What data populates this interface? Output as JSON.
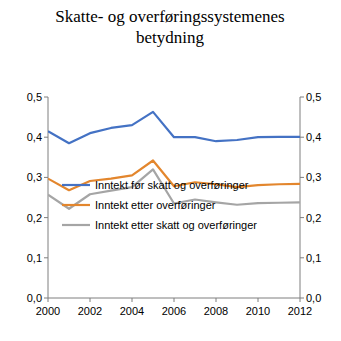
{
  "chart_data": {
    "type": "line",
    "title": "Skatte- og overføringssystemenes betydning",
    "x": [
      2000,
      2001,
      2002,
      2003,
      2004,
      2005,
      2006,
      2007,
      2008,
      2009,
      2010,
      2011,
      2012
    ],
    "xlim": [
      2000,
      2012
    ],
    "xticks": [
      2000,
      2002,
      2004,
      2006,
      2008,
      2010,
      2012
    ],
    "ylim": [
      0,
      0.5
    ],
    "yticks": [
      {
        "value": 0,
        "label": "0,0"
      },
      {
        "value": 0.1,
        "label": "0,1"
      },
      {
        "value": 0.2,
        "label": "0,2"
      },
      {
        "value": 0.3,
        "label": "0,3"
      },
      {
        "value": 0.4,
        "label": "0,4"
      },
      {
        "value": 0.5,
        "label": "0,5"
      }
    ],
    "y2lim": [
      0,
      0.5
    ],
    "y2ticks": [
      {
        "value": 0,
        "label": "0,0"
      },
      {
        "value": 0.1,
        "label": "0,1"
      },
      {
        "value": 0.2,
        "label": "0,2"
      },
      {
        "value": 0.3,
        "label": "0,3"
      },
      {
        "value": 0.4,
        "label": "0,4"
      },
      {
        "value": 0.5,
        "label": "0,5"
      }
    ],
    "grid": false,
    "legend": "lower left",
    "series": [
      {
        "name": "Inntekt før skatt og overføringer",
        "color": "#4472c4",
        "values": [
          0.415,
          0.385,
          0.41,
          0.423,
          0.43,
          0.463,
          0.4,
          0.4,
          0.39,
          0.393,
          0.4,
          0.401,
          0.401
        ]
      },
      {
        "name": "Inntekt etter overføringer",
        "color": "#e3862d",
        "values": [
          0.297,
          0.268,
          0.291,
          0.297,
          0.305,
          0.342,
          0.278,
          0.288,
          0.283,
          0.276,
          0.281,
          0.283,
          0.284
        ]
      },
      {
        "name": "Inntekt etter skatt og overføringer",
        "color": "#a5a5a5",
        "values": [
          0.257,
          0.222,
          0.258,
          0.267,
          0.276,
          0.32,
          0.235,
          0.245,
          0.238,
          0.232,
          0.236,
          0.237,
          0.238
        ]
      }
    ]
  }
}
